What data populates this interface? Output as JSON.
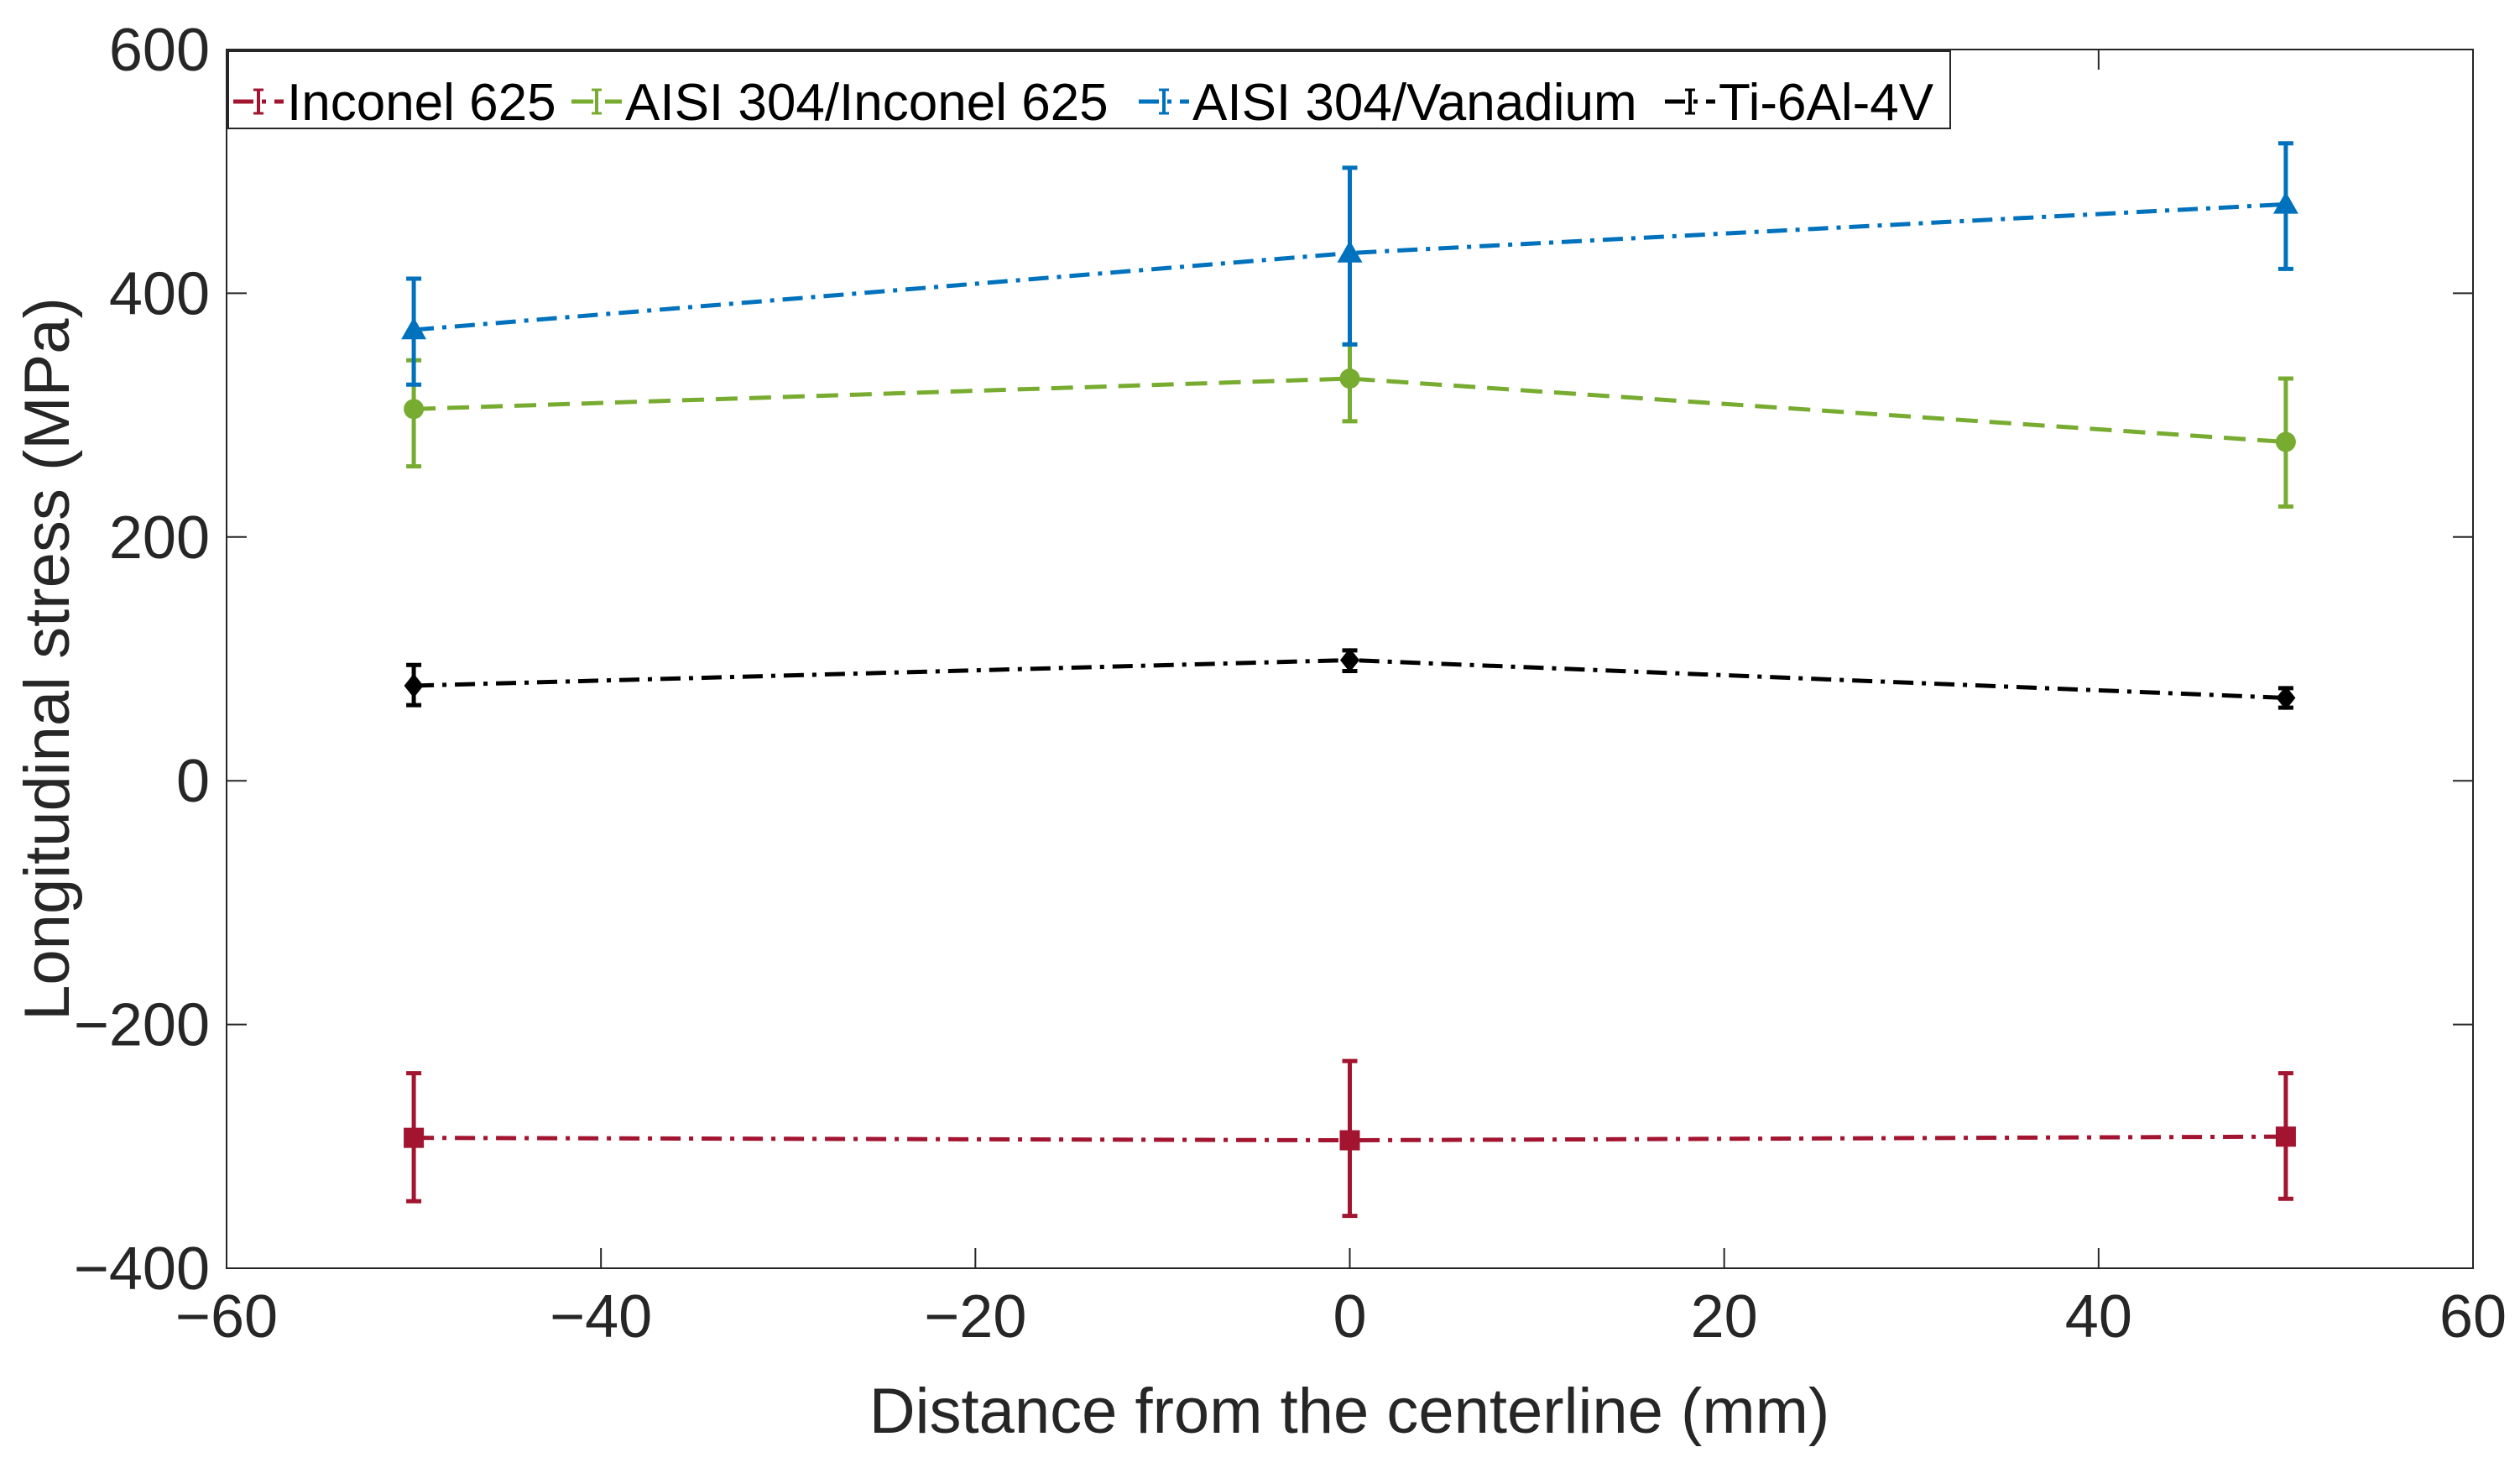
{
  "chart_data": {
    "type": "line",
    "title": "",
    "xlabel": "Distance from the centerline (mm)",
    "ylabel": "Longitudinal stress (MPa)",
    "xlim": [
      -60,
      60
    ],
    "ylim": [
      -400,
      600
    ],
    "xticks": [
      -60,
      -40,
      -20,
      0,
      20,
      40,
      60
    ],
    "yticks": [
      -400,
      -200,
      0,
      200,
      400,
      600
    ],
    "xtick_labels": [
      "−60",
      "−40",
      "−20",
      "0",
      "20",
      "40",
      "60"
    ],
    "ytick_labels": [
      "−400",
      "−200",
      "0",
      "200",
      "400",
      "600"
    ],
    "grid": false,
    "legend_position": "top-left",
    "x": [
      -50,
      0,
      50
    ],
    "series": [
      {
        "name": "Inconel 625",
        "color": "#a2142f",
        "marker": "square",
        "line_style": "dash-dot",
        "values": [
          -293,
          -295,
          -292
        ],
        "error_low": [
          -345,
          -357,
          -343
        ],
        "error_high": [
          -240,
          -230,
          -240
        ]
      },
      {
        "name": "AISI 304/Inconel 625",
        "color": "#77ac30",
        "marker": "circle",
        "line_style": "dashed",
        "values": [
          305,
          330,
          278
        ],
        "error_low": [
          258,
          295,
          225
        ],
        "error_high": [
          345,
          358,
          330
        ]
      },
      {
        "name": "AISI 304/Vanadium",
        "color": "#0072bd",
        "marker": "triangle",
        "line_style": "dash-dot",
        "values": [
          370,
          433,
          473
        ],
        "error_low": [
          325,
          358,
          420
        ],
        "error_high": [
          412,
          503,
          523
        ]
      },
      {
        "name": "Ti-6Al-4V",
        "color": "#000000",
        "marker": "diamond",
        "line_style": "dash-dot",
        "values": [
          78,
          99,
          68
        ],
        "error_low": [
          62,
          90,
          60
        ],
        "error_high": [
          95,
          107,
          76
        ]
      }
    ]
  }
}
